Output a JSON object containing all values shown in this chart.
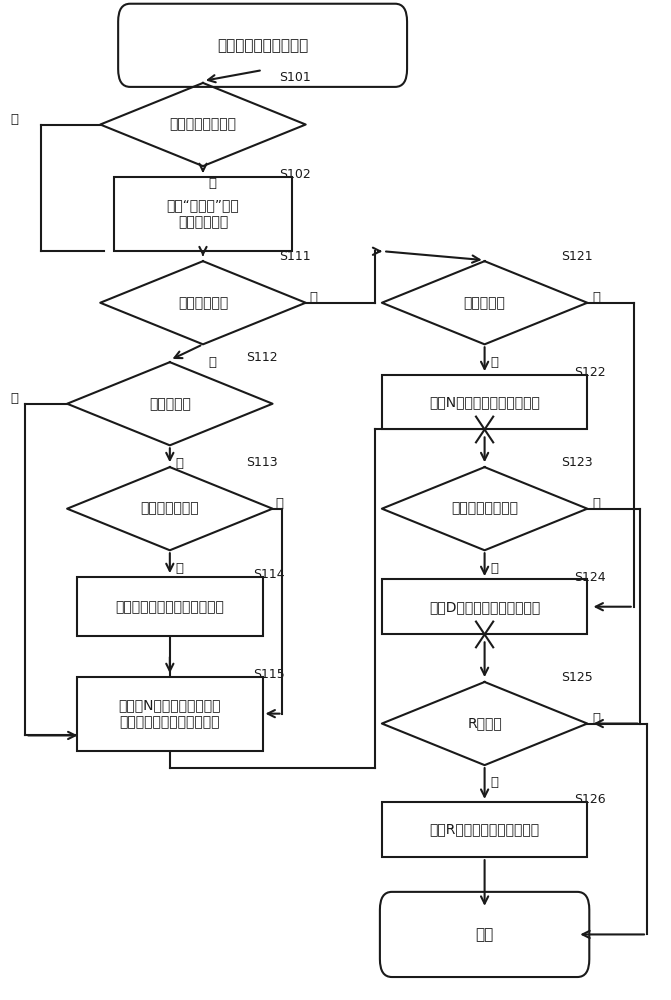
{
  "bg_color": "#ffffff",
  "line_color": "#1a1a1a",
  "text_color": "#1a1a1a",
  "nodes": {
    "start_text": "控制换档档位输出处理",
    "S101_text": "检测到多个位置？",
    "S102_text": "发送“未定义”作为\n控制换档档位",
    "S111_text": "操作离合器？",
    "S112_text": "空档位置？",
    "S113_text": "初始控制周期？",
    "S114_text": "存储先前的输出值作为保持值",
    "S115_text": "改变至N档位作为控制换档\n档位并且发送保持值的档位",
    "S121_text": "空档位置？",
    "S122_text": "发送N档位作为控制换档档位",
    "S123_text": "任意前进档位置？",
    "S124_text": "发送D档位作为控制换档档位",
    "S125_text": "R位置？",
    "S126_text": "发送R档位作为控制换档档位",
    "end_text": "返回",
    "yes_text": "是",
    "no_text": "否"
  }
}
